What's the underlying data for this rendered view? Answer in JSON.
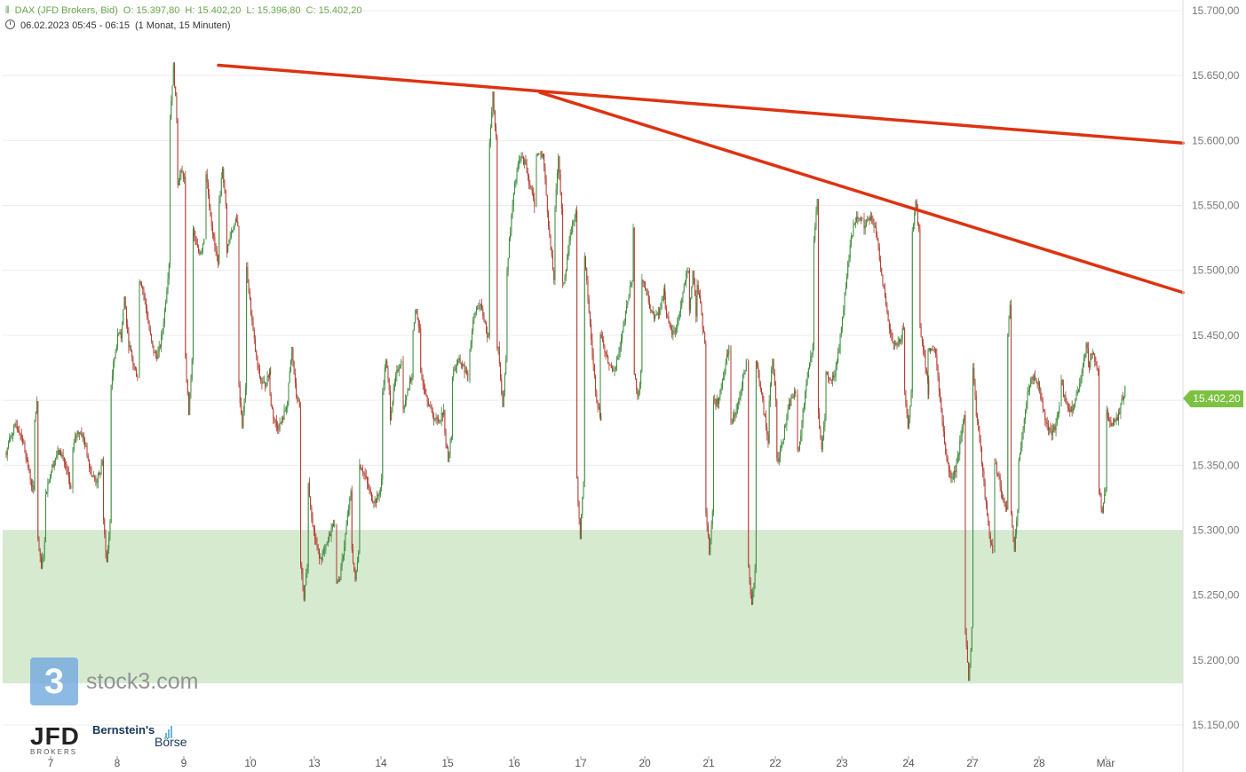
{
  "header": {
    "instrument": "DAX (JFD Brokers, Bid)",
    "open": "O: 15.397,80",
    "high": "H: 15.402,20",
    "low": "L: 15.396,80",
    "close": "C: 15.402,20",
    "timestamp": "06.02.2023 05:45 - 06:15",
    "period": "(1 Monat, 15 Minuten)"
  },
  "current_price_label": "15.402,20",
  "watermark": {
    "logo_char": "3",
    "text": "stock3.com"
  },
  "brand_logos": {
    "jfd": "JFD",
    "jfd_sub": "BROKERS",
    "bernstein": "Bernstein's",
    "boerse": "Börse"
  },
  "colors": {
    "up_candle": "#3a8a3a",
    "down_candle": "#b03a2e",
    "trendline": "#dd3311",
    "support_zone": "#d6ead0",
    "grid": "#ececec",
    "axis_text": "#777777",
    "price_tag": "#7cc242"
  },
  "chart_data": {
    "type": "candlestick",
    "y_axis": {
      "min": 15130,
      "max": 15720,
      "ticks": [
        15700,
        15650,
        15600,
        15550,
        15500,
        15450,
        15400,
        15350,
        15300,
        15250,
        15200,
        15150
      ],
      "tick_labels": [
        "15.700,00",
        "15.650,00",
        "15.600,00",
        "15.550,00",
        "15.500,00",
        "15.450,00",
        "15.400,00",
        "15.350,00",
        "15.300,00",
        "15.250,00",
        "15.200,00",
        "15.150,00"
      ]
    },
    "x_axis": {
      "labels": [
        "7",
        "8",
        "9",
        "10",
        "13",
        "14",
        "15",
        "16",
        "17",
        "20",
        "21",
        "22",
        "23",
        "24",
        "27",
        "28",
        "Mär"
      ]
    },
    "current_price": 15402.2,
    "support_zone": {
      "from": 15182,
      "to": 15300
    },
    "trendlines": [
      {
        "name": "",
        "from": {
          "day": "9",
          "value": 15658
        },
        "to": {
          "day": "Mär+",
          "value": 15598
        }
      },
      {
        "name": "",
        "from": {
          "day": "16",
          "value": 15637
        },
        "to": {
          "day": "Mär+",
          "value": 15483
        }
      }
    ],
    "price_path_daily_anchors": [
      {
        "day": "7",
        "open": 15360,
        "high": 15405,
        "low": 15270,
        "close": 15330
      },
      {
        "day": "8",
        "open": 15330,
        "high": 15480,
        "low": 15275,
        "close": 15450
      },
      {
        "day": "9",
        "open": 15450,
        "high": 15658,
        "low": 15390,
        "close": 15570
      },
      {
        "day": "10",
        "open": 15570,
        "high": 15580,
        "low": 15380,
        "close": 15430
      },
      {
        "day": "13",
        "open": 15430,
        "high": 15440,
        "low": 15245,
        "close": 15280
      },
      {
        "day": "14",
        "open": 15280,
        "high": 15432,
        "low": 15260,
        "close": 15400
      },
      {
        "day": "15",
        "open": 15400,
        "high": 15470,
        "low": 15355,
        "close": 15410
      },
      {
        "day": "16",
        "open": 15410,
        "high": 15637,
        "low": 15395,
        "close": 15580
      },
      {
        "day": "17",
        "open": 15580,
        "high": 15590,
        "low": 15295,
        "close": 15440
      },
      {
        "day": "20",
        "open": 15440,
        "high": 15553,
        "low": 15400,
        "close": 15500
      },
      {
        "day": "21",
        "open": 15500,
        "high": 15500,
        "low": 15283,
        "close": 15420
      },
      {
        "day": "22",
        "open": 15420,
        "high": 15430,
        "low": 15243,
        "close": 15370
      },
      {
        "day": "23",
        "open": 15370,
        "high": 15555,
        "low": 15360,
        "close": 15520
      },
      {
        "day": "24",
        "open": 15520,
        "high": 15555,
        "low": 15380,
        "close": 15420
      },
      {
        "day": "27",
        "open": 15420,
        "high": 15440,
        "low": 15185,
        "close": 15330
      },
      {
        "day": "28",
        "open": 15330,
        "high": 15482,
        "low": 15285,
        "close": 15420
      },
      {
        "day": "Mär",
        "open": 15420,
        "high": 15445,
        "low": 15312,
        "close": 15402.2
      }
    ]
  }
}
